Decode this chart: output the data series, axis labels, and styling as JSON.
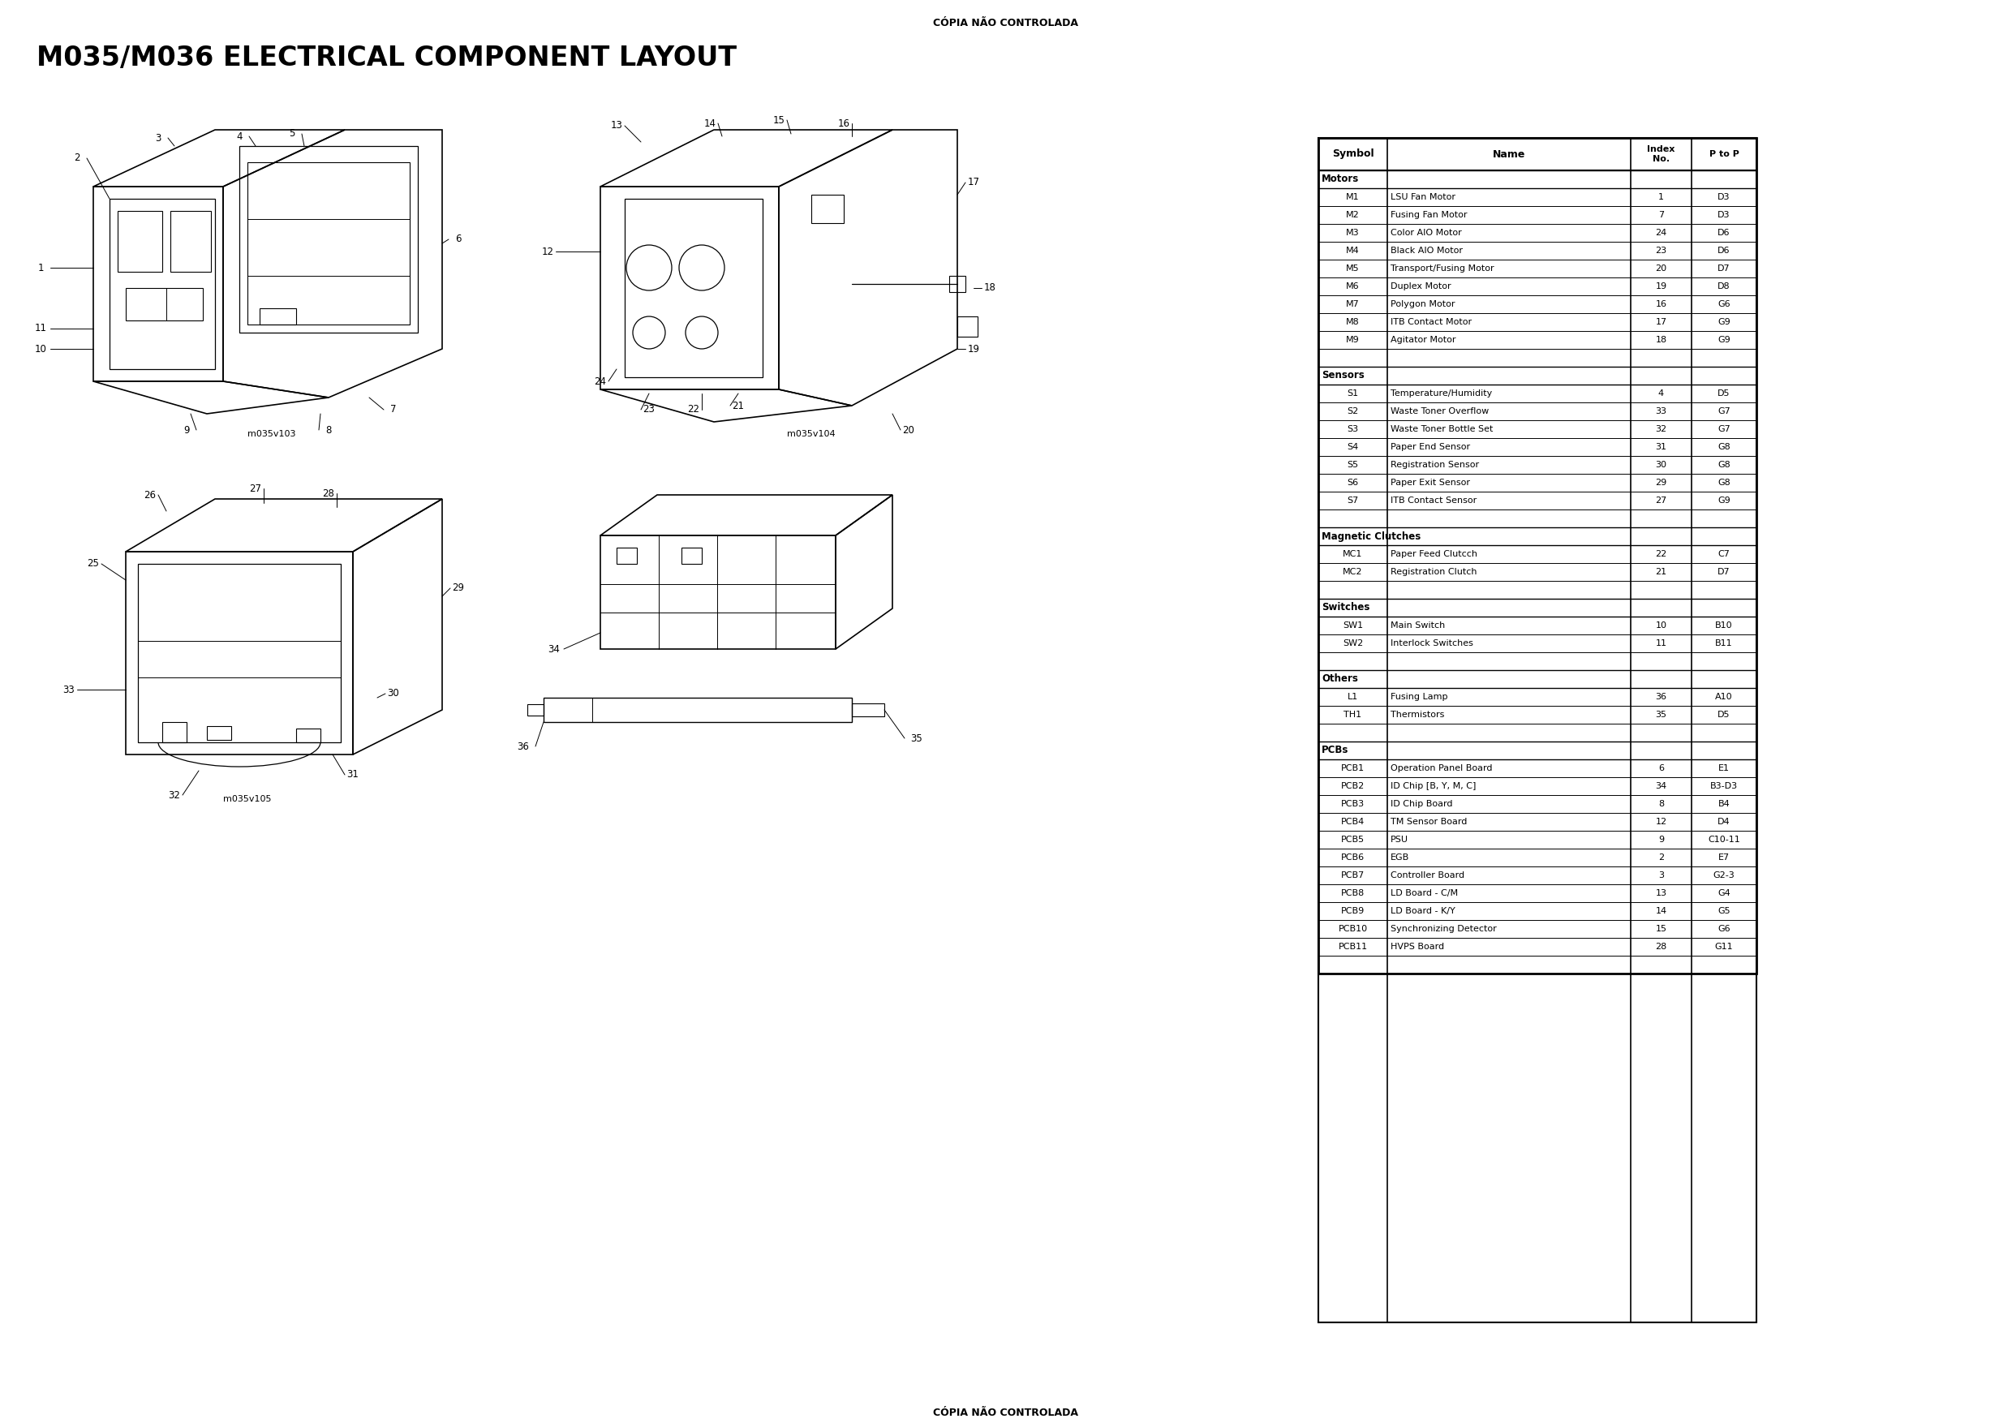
{
  "page_title": "M035/M036 ELECTRICAL COMPONENT LAYOUT",
  "watermark": "CÓPIA NÃO CONTROLADA",
  "diagram_labels": {
    "top_left": "m035v103",
    "top_right": "m035v104",
    "bottom_left": "m035v105"
  },
  "table_sections": [
    {
      "section": "Motors",
      "rows": [
        [
          "M1",
          "LSU Fan Motor",
          "1",
          "D3"
        ],
        [
          "M2",
          "Fusing Fan Motor",
          "7",
          "D3"
        ],
        [
          "M3",
          "Color AIO Motor",
          "24",
          "D6"
        ],
        [
          "M4",
          "Black AIO Motor",
          "23",
          "D6"
        ],
        [
          "M5",
          "Transport/Fusing Motor",
          "20",
          "D7"
        ],
        [
          "M6",
          "Duplex Motor",
          "19",
          "D8"
        ],
        [
          "M7",
          "Polygon Motor",
          "16",
          "G6"
        ],
        [
          "M8",
          "ITB Contact Motor",
          "17",
          "G9"
        ],
        [
          "M9",
          "Agitator Motor",
          "18",
          "G9"
        ]
      ]
    },
    {
      "section": "Sensors",
      "rows": [
        [
          "S1",
          "Temperature/Humidity",
          "4",
          "D5"
        ],
        [
          "S2",
          "Waste Toner Overflow",
          "33",
          "G7"
        ],
        [
          "S3",
          "Waste Toner Bottle Set",
          "32",
          "G7"
        ],
        [
          "S4",
          "Paper End Sensor",
          "31",
          "G8"
        ],
        [
          "S5",
          "Registration Sensor",
          "30",
          "G8"
        ],
        [
          "S6",
          "Paper Exit Sensor",
          "29",
          "G8"
        ],
        [
          "S7",
          "ITB Contact Sensor",
          "27",
          "G9"
        ]
      ]
    },
    {
      "section": "Magnetic Clutches",
      "rows": [
        [
          "MC1",
          "Paper Feed Clutcch",
          "22",
          "C7"
        ],
        [
          "MC2",
          "Registration Clutch",
          "21",
          "D7"
        ]
      ]
    },
    {
      "section": "Switches",
      "rows": [
        [
          "SW1",
          "Main Switch",
          "10",
          "B10"
        ],
        [
          "SW2",
          "Interlock Switches",
          "11",
          "B11"
        ]
      ]
    },
    {
      "section": "Others",
      "rows": [
        [
          "L1",
          "Fusing Lamp",
          "36",
          "A10"
        ],
        [
          "TH1",
          "Thermistors",
          "35",
          "D5"
        ]
      ]
    },
    {
      "section": "PCBs",
      "rows": [
        [
          "PCB1",
          "Operation Panel Board",
          "6",
          "E1"
        ],
        [
          "PCB2",
          "ID Chip [B, Y, M, C]",
          "34",
          "B3-D3"
        ],
        [
          "PCB3",
          "ID Chip Board",
          "8",
          "B4"
        ],
        [
          "PCB4",
          "TM Sensor Board",
          "12",
          "D4"
        ],
        [
          "PCB5",
          "PSU",
          "9",
          "C10-11"
        ],
        [
          "PCB6",
          "EGB",
          "2",
          "E7"
        ],
        [
          "PCB7",
          "Controller Board",
          "3",
          "G2-3"
        ],
        [
          "PCB8",
          "LD Board - C/M",
          "13",
          "G4"
        ],
        [
          "PCB9",
          "LD Board - K/Y",
          "14",
          "G5"
        ],
        [
          "PCB10",
          "Synchronizing Detector",
          "15",
          "G6"
        ],
        [
          "PCB11",
          "HVPS Board",
          "28",
          "G11"
        ]
      ]
    }
  ],
  "bg_color": "#ffffff"
}
